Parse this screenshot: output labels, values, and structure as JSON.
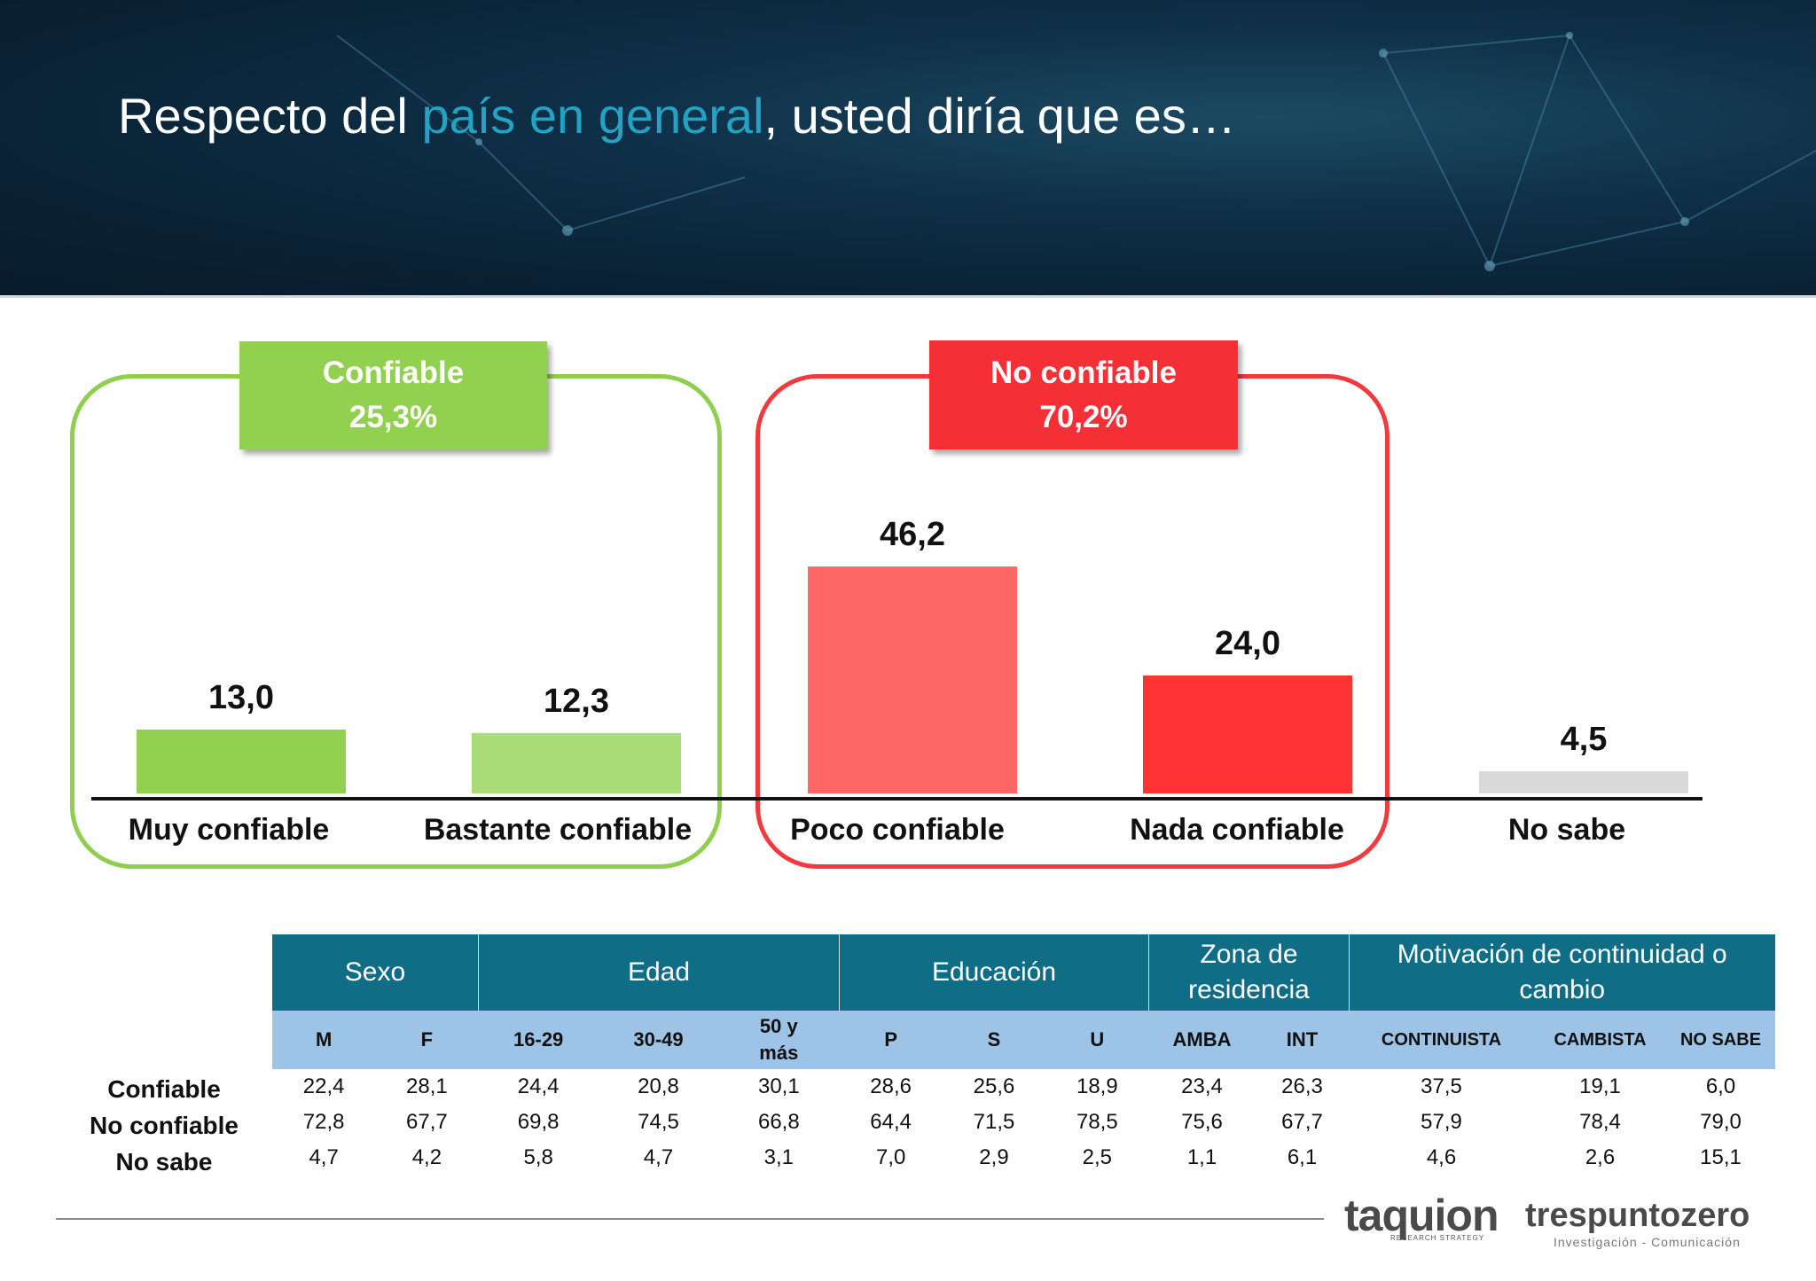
{
  "title": {
    "part1": "Respecto del ",
    "highlight": "país en general",
    "part2": ", usted diría que es…"
  },
  "groups": {
    "confiable": {
      "label": "Confiable",
      "pct": "25,3%",
      "color": "#92d050"
    },
    "no_confiable": {
      "label": "No confiable",
      "pct": "70,2%",
      "color": "#f42f36"
    }
  },
  "chart_data": {
    "type": "bar",
    "categories": [
      "Muy confiable",
      "Bastante confiable",
      "Poco confiable",
      "Nada confiable",
      "No sabe"
    ],
    "values": [
      13.0,
      12.3,
      46.2,
      24.0,
      4.5
    ],
    "value_labels": [
      "13,0",
      "12,3",
      "46,2",
      "24,0",
      "4,5"
    ],
    "colors": [
      "#92d050",
      "#a9dc76",
      "#ff6666",
      "#ff3333",
      "#d9d9d9"
    ],
    "title": "",
    "xlabel": "",
    "ylabel": "",
    "ylim": [
      0,
      50
    ],
    "grid": false
  },
  "table": {
    "groups": [
      "Sexo",
      "Edad",
      "Educación",
      "Zona de residencia",
      "Motivación de continuidad o cambio"
    ],
    "columns": [
      "M",
      "F",
      "16-29",
      "30-49",
      "50 y más",
      "P",
      "S",
      "U",
      "AMBA",
      "INT",
      "CONTINUISTA",
      "CAMBISTA",
      "NO SABE"
    ],
    "row_labels": [
      "Confiable",
      "No confiable",
      "No sabe"
    ],
    "rows": [
      [
        "22,4",
        "28,1",
        "24,4",
        "20,8",
        "30,1",
        "28,6",
        "25,6",
        "18,9",
        "23,4",
        "26,3",
        "37,5",
        "19,1",
        "6,0"
      ],
      [
        "72,8",
        "67,7",
        "69,8",
        "74,5",
        "66,8",
        "64,4",
        "71,5",
        "78,5",
        "75,6",
        "67,7",
        "57,9",
        "78,4",
        "79,0"
      ],
      [
        "4,7",
        "4,2",
        "5,8",
        "4,7",
        "3,1",
        "7,0",
        "2,9",
        "2,5",
        "1,1",
        "6,1",
        "4,6",
        "2,6",
        "15,1"
      ]
    ]
  },
  "logos": {
    "taquion": "taquion",
    "taquion_sub": "RESEARCH STRATEGY",
    "tres": "trespuntozero",
    "tres_sub": "Investigación - Comunicación"
  }
}
